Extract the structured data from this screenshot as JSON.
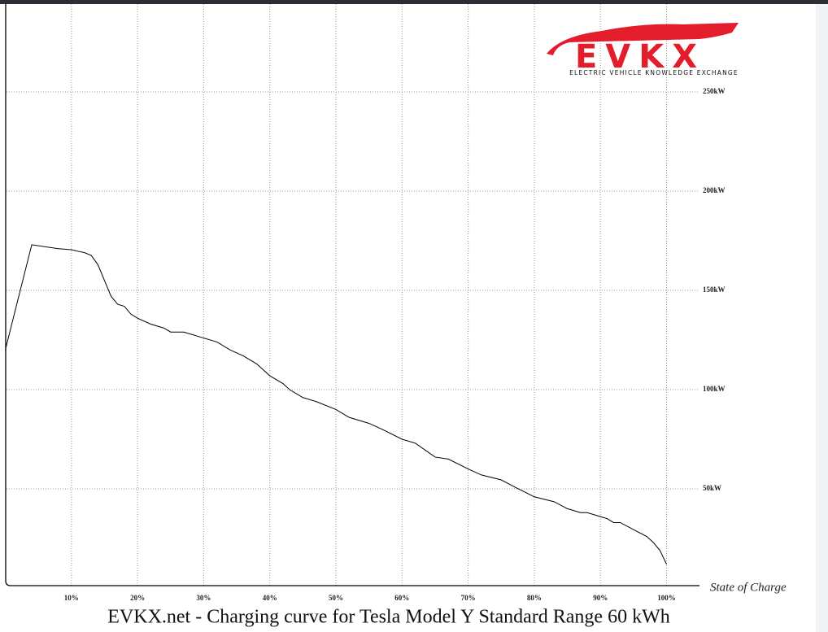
{
  "chart_data": {
    "type": "line",
    "title": "EVKX.net - Charging curve for Tesla Model Y Standard Range 60 kWh",
    "x_label": "State of Charge",
    "logo_text": "EVKX",
    "logo_tagline": "ELECTRIC VEHICLE KNOWLEDGE EXCHANGE",
    "x": [
      0,
      4,
      8,
      10,
      11,
      12,
      13,
      14,
      15,
      16,
      17,
      18,
      19,
      20,
      22,
      24,
      25,
      27,
      30,
      32,
      34,
      36,
      38,
      40,
      42,
      43,
      45,
      47,
      50,
      52,
      55,
      57,
      60,
      62,
      65,
      67,
      70,
      72,
      75,
      77,
      80,
      83,
      85,
      87,
      88,
      90,
      91,
      92,
      93,
      95,
      97,
      98,
      99,
      100
    ],
    "values": [
      120,
      173,
      171,
      170.5,
      169.7,
      169,
      167.6,
      163,
      155,
      147,
      143,
      142,
      138,
      136,
      133,
      131,
      129,
      129,
      126,
      124,
      120,
      117,
      113,
      107,
      103,
      100,
      96,
      94,
      90,
      86,
      83,
      80,
      75,
      73,
      66,
      65,
      60,
      57,
      54.5,
      51,
      46,
      43.5,
      40,
      38,
      38,
      36,
      35,
      33,
      33,
      29.5,
      26,
      23,
      19,
      12
    ],
    "color": "#000000",
    "xlim": [
      0,
      105
    ],
    "ylim": [
      0,
      295
    ],
    "xticks": [
      {
        "value": 10,
        "label": "10%"
      },
      {
        "value": 20,
        "label": "20%"
      },
      {
        "value": 30,
        "label": "30%"
      },
      {
        "value": 40,
        "label": "40%"
      },
      {
        "value": 50,
        "label": "50%"
      },
      {
        "value": 60,
        "label": "60%"
      },
      {
        "value": 70,
        "label": "70%"
      },
      {
        "value": 80,
        "label": "80%"
      },
      {
        "value": 90,
        "label": "90%"
      },
      {
        "value": 100,
        "label": "100%"
      }
    ],
    "yticks": [
      {
        "value": 50,
        "label": "50kW"
      },
      {
        "value": 100,
        "label": "100kW"
      },
      {
        "value": 150,
        "label": "150kW"
      },
      {
        "value": 200,
        "label": "200kW"
      },
      {
        "value": 250,
        "label": "250kW"
      }
    ],
    "grid": true
  }
}
